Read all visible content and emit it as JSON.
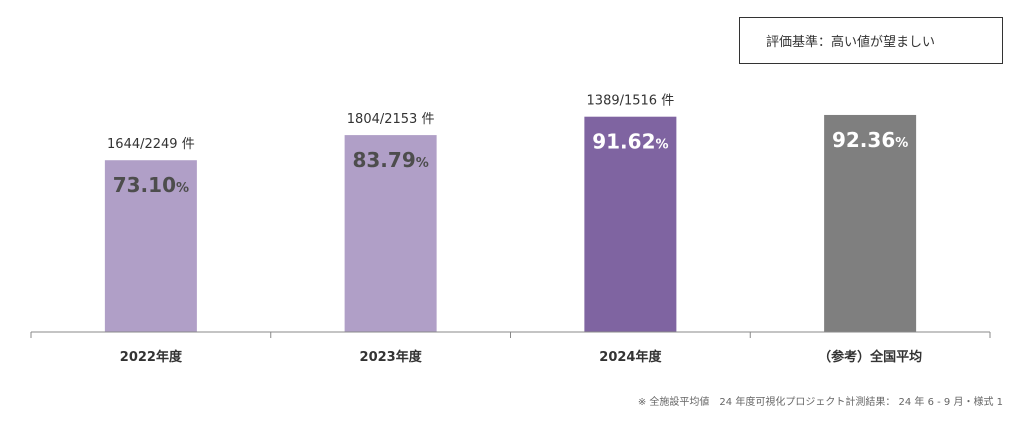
{
  "criteria_label": "評価基準：高い値が望ましい",
  "footnote": "※ 全施設平均値　24 年度可視化プロジェクト計測結果： 24 年 6 - 9 月・様式 1",
  "colors": {
    "light_purple": "#b09fc7",
    "dark_purple": "#7f64a1",
    "gray": "#7f7f7f",
    "axis": "#888888",
    "text": "#333333",
    "inner_dark_text": "#4d4d4d",
    "inner_light_text": "#ffffff"
  },
  "chart_data": {
    "type": "bar",
    "categories": [
      "2022年度",
      "2023年度",
      "2024年度",
      "（参考）全国平均"
    ],
    "values": [
      73.1,
      83.79,
      91.62,
      92.36
    ],
    "value_labels": [
      "73.10",
      "83.79",
      "91.62",
      "92.36"
    ],
    "value_unit": "%",
    "count_labels": [
      "1644/2249 件",
      "1804/2153 件",
      "1389/1516 件",
      ""
    ],
    "bar_colors": [
      "#b09fc7",
      "#b09fc7",
      "#7f64a1",
      "#7f7f7f"
    ],
    "value_label_colors": [
      "#4d4d4d",
      "#4d4d4d",
      "#ffffff",
      "#ffffff"
    ],
    "ylim": [
      0,
      100
    ]
  }
}
